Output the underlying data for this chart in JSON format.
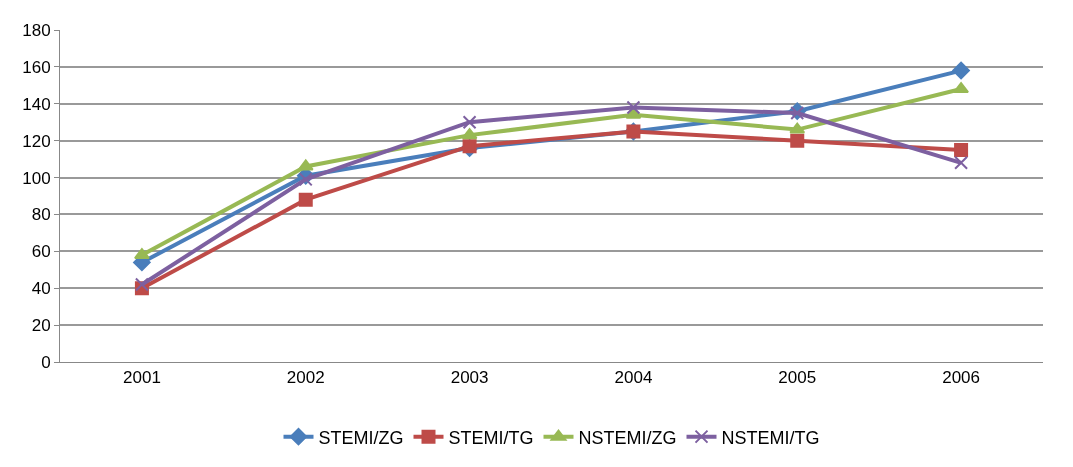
{
  "chart_data": {
    "type": "line",
    "categories": [
      "2001",
      "2002",
      "2003",
      "2004",
      "2005",
      "2006"
    ],
    "series": [
      {
        "name": "STEMI/ZG",
        "color": "#4a7ebb",
        "marker": "diamond",
        "values": [
          54,
          101,
          116,
          125,
          136,
          158
        ]
      },
      {
        "name": "STEMI/TG",
        "color": "#be4b48",
        "marker": "square",
        "values": [
          40,
          88,
          117,
          125,
          120,
          115
        ]
      },
      {
        "name": "NSTEMI/ZG",
        "color": "#98b954",
        "marker": "triangle",
        "values": [
          58,
          106,
          123,
          134,
          126,
          148
        ]
      },
      {
        "name": "NSTEMI/TG",
        "color": "#7d60a0",
        "marker": "cross",
        "values": [
          42,
          99,
          130,
          138,
          135,
          108
        ]
      }
    ],
    "ylim": [
      0,
      180
    ],
    "yticks": [
      0,
      20,
      40,
      60,
      80,
      100,
      120,
      140,
      160,
      180
    ],
    "grid": "y",
    "legend": "bottom"
  }
}
